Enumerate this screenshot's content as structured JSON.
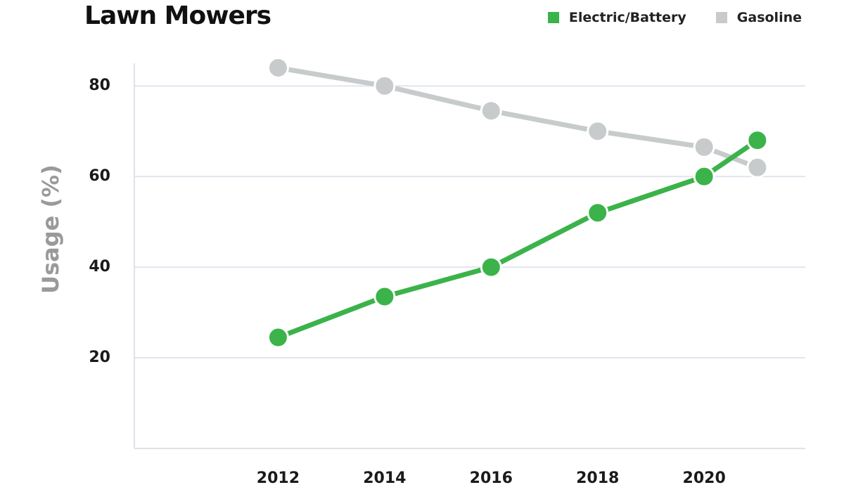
{
  "chart_data": {
    "type": "line",
    "title": "Lawn Mowers",
    "ylabel": "Usage (%)",
    "xlabel": "",
    "x": [
      2012,
      2014,
      2016,
      2018,
      2020,
      2021
    ],
    "x_ticks": [
      "2012",
      "2014",
      "2016",
      "2018",
      "2020"
    ],
    "y_ticks": [
      "20",
      "40",
      "60",
      "80"
    ],
    "ylim": [
      0,
      85
    ],
    "xlim": [
      2009.3,
      2021.9
    ],
    "grid": true,
    "legend_position": "top-right",
    "series": [
      {
        "name": "Electric/Battery",
        "color": "#3bb34a",
        "values": [
          24.5,
          33.5,
          40,
          52,
          60,
          68
        ]
      },
      {
        "name": "Gasoline",
        "color": "#c7cbcb",
        "values": [
          84,
          80,
          74.5,
          70,
          66.5,
          62
        ]
      }
    ]
  }
}
